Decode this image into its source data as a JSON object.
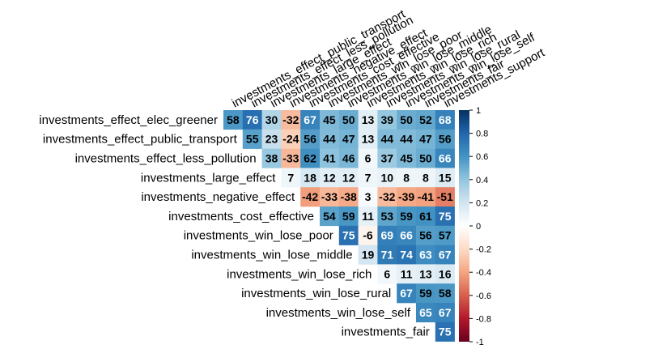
{
  "chart_data": {
    "type": "heatmap",
    "layout": "upper-triangle correlation matrix (diagonal omitted)",
    "rows": [
      "investments_effect_elec_greener",
      "investments_effect_public_transport",
      "investments_effect_less_pollution",
      "investments_large_effect",
      "investments_negative_effect",
      "investments_cost_effective",
      "investments_win_lose_poor",
      "investments_win_lose_middle",
      "investments_win_lose_rich",
      "investments_win_lose_rural",
      "investments_win_lose_self",
      "investments_fair"
    ],
    "columns": [
      "investments_effect_public_transport",
      "investments_effect_less_pollution",
      "investments_large_effect",
      "investments_negative_effect",
      "investments_cost_effective",
      "investments_win_lose_poor",
      "investments_win_lose_middle",
      "investments_win_lose_rich",
      "investments_win_lose_rural",
      "investments_win_lose_self",
      "investments_fair",
      "investments_support"
    ],
    "values": [
      [
        58,
        76,
        30,
        -32,
        67,
        45,
        50,
        13,
        39,
        50,
        52,
        68
      ],
      [
        55,
        23,
        -24,
        56,
        44,
        47,
        13,
        44,
        44,
        47,
        56
      ],
      [
        38,
        -33,
        62,
        41,
        46,
        6,
        37,
        45,
        50,
        66
      ],
      [
        7,
        18,
        12,
        12,
        7,
        10,
        8,
        8,
        15
      ],
      [
        -42,
        -33,
        -38,
        3,
        -32,
        -39,
        -41,
        -51
      ],
      [
        54,
        59,
        11,
        53,
        59,
        61,
        75
      ],
      [
        75,
        -6,
        69,
        66,
        56,
        57
      ],
      [
        19,
        71,
        74,
        63,
        67
      ],
      [
        6,
        11,
        13,
        16
      ],
      [
        67,
        59,
        58
      ],
      [
        65,
        67
      ],
      [
        75
      ]
    ],
    "value_scale": "percent of correlation coefficient",
    "colorbar": {
      "range": [
        -1,
        1
      ],
      "ticks": [
        "-1",
        "-0.8",
        "-0.6",
        "-0.4",
        "-0.2",
        "0",
        "0.2",
        "0.4",
        "0.6",
        "0.8",
        "1"
      ],
      "low_color": "#67001F",
      "mid_color": "#FFFFFF",
      "high_color": "#053061"
    }
  }
}
